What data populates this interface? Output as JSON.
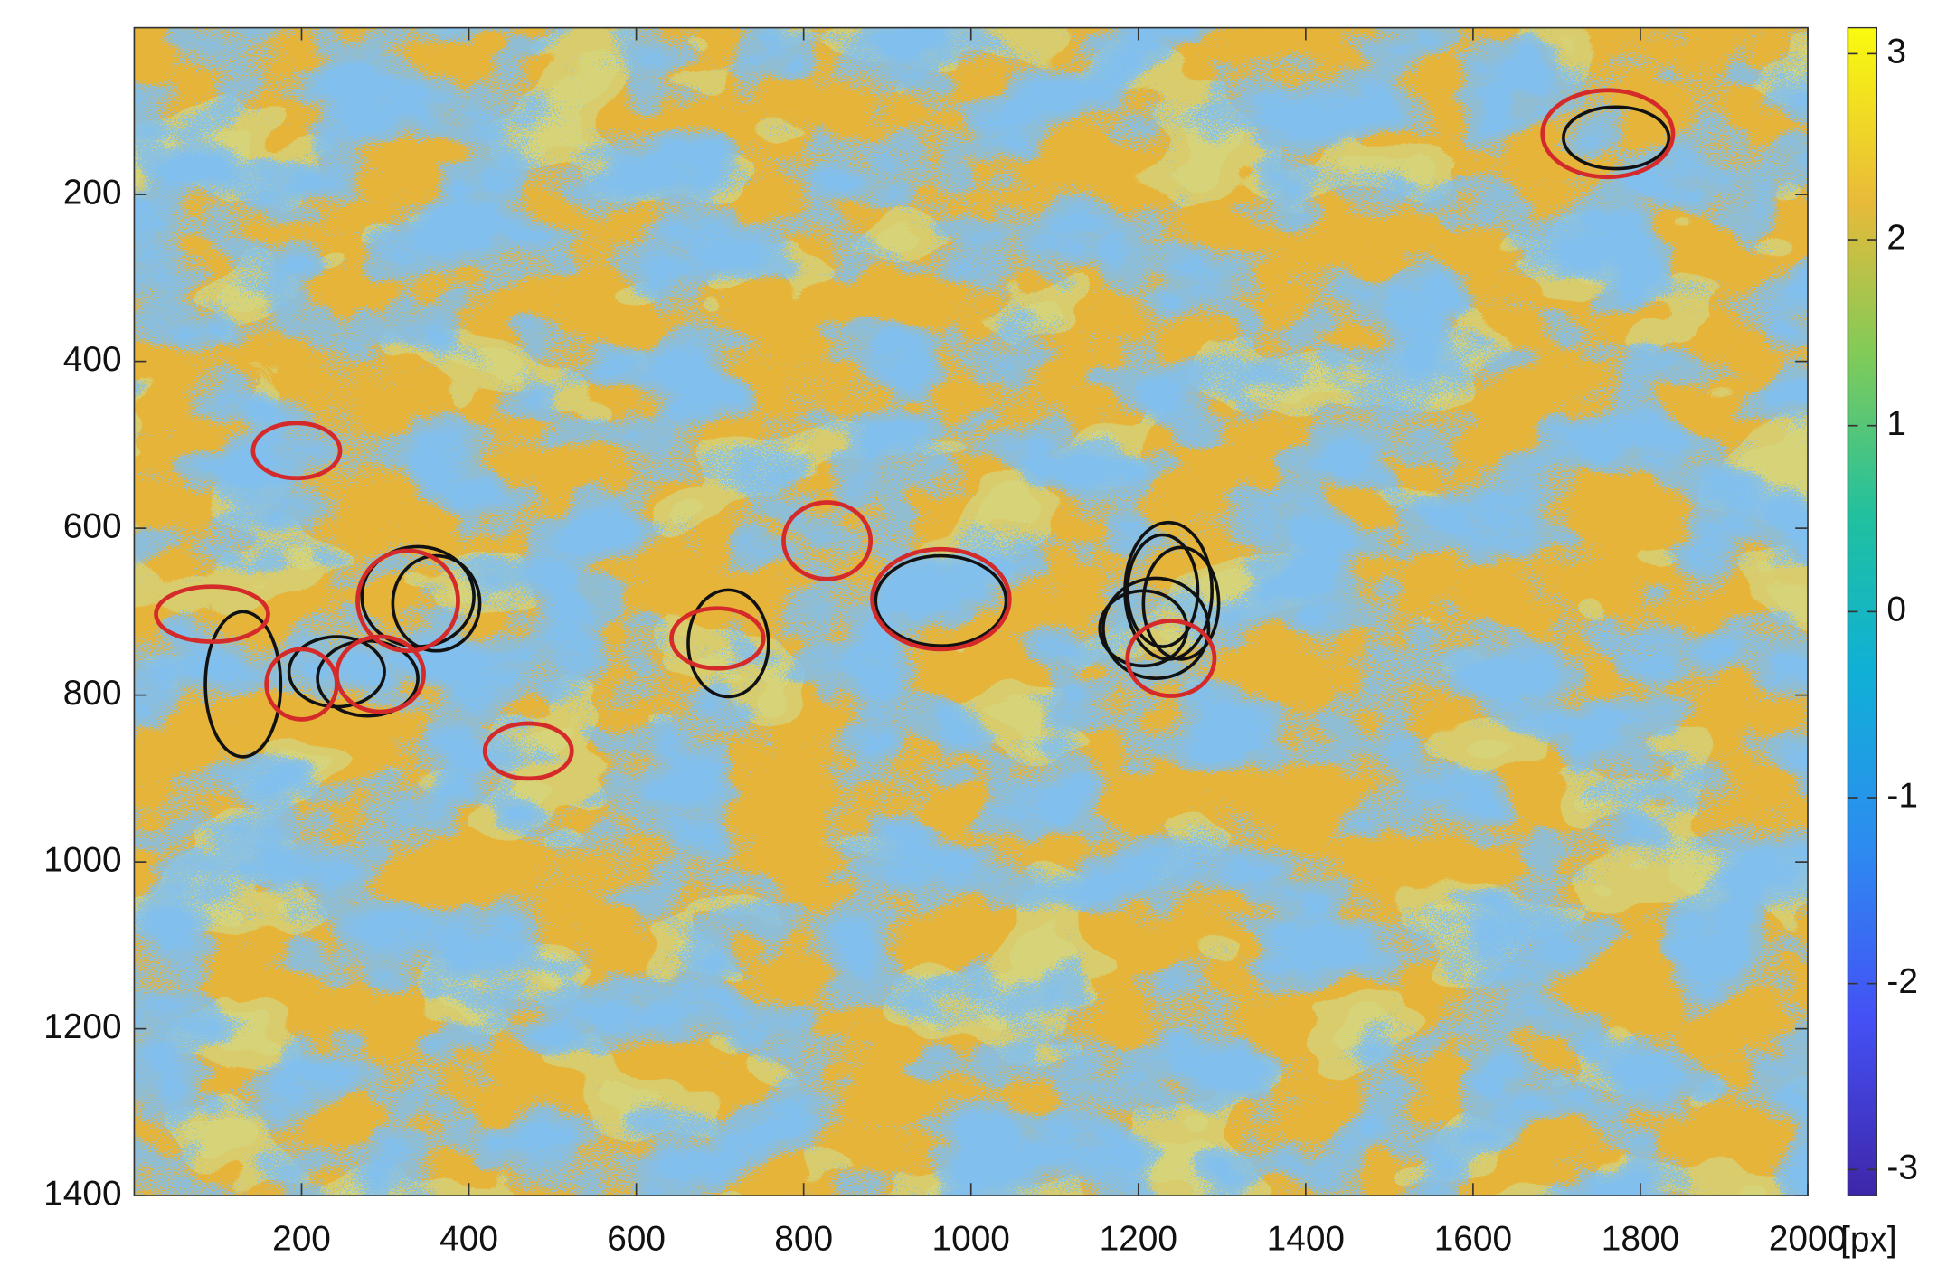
{
  "chart_data": {
    "type": "heatmap",
    "x_unit": "[px]",
    "xlim": [
      0,
      2000
    ],
    "ylim": [
      1400,
      0
    ],
    "xticks": [
      200,
      400,
      600,
      800,
      1000,
      1200,
      1400,
      1600,
      1800,
      2000
    ],
    "yticks": [
      200,
      400,
      600,
      800,
      1000,
      1200,
      1400
    ],
    "clim": [
      -3.14,
      3.14
    ],
    "cticks": [
      -3,
      -2,
      -1,
      0,
      1,
      2,
      3
    ],
    "ellipse_groups": [
      {
        "color": "#111111",
        "ellipses": [
          {
            "cx": 1771,
            "cy": 132,
            "rx": 63,
            "ry": 37
          },
          {
            "cx": 130,
            "cy": 787,
            "rx": 45,
            "ry": 87
          },
          {
            "cx": 710,
            "cy": 738,
            "rx": 48,
            "ry": 64
          },
          {
            "cx": 964,
            "cy": 687,
            "rx": 78,
            "ry": 54
          },
          {
            "cx": 339,
            "cy": 682,
            "rx": 67,
            "ry": 60
          },
          {
            "cx": 361,
            "cy": 690,
            "rx": 52,
            "ry": 57
          },
          {
            "cx": 279,
            "cy": 780,
            "rx": 60,
            "ry": 45
          },
          {
            "cx": 242,
            "cy": 772,
            "rx": 57,
            "ry": 42
          },
          {
            "cx": 1236,
            "cy": 675,
            "rx": 52,
            "ry": 82
          },
          {
            "cx": 1221,
            "cy": 720,
            "rx": 63,
            "ry": 60
          },
          {
            "cx": 1251,
            "cy": 690,
            "rx": 45,
            "ry": 67
          },
          {
            "cx": 1206,
            "cy": 720,
            "rx": 52,
            "ry": 45
          },
          {
            "cx": 1229,
            "cy": 675,
            "rx": 42,
            "ry": 67
          }
        ]
      },
      {
        "color": "#d42a2a",
        "ellipses": [
          {
            "cx": 194,
            "cy": 507,
            "rx": 52,
            "ry": 33
          },
          {
            "cx": 93,
            "cy": 703,
            "rx": 67,
            "ry": 33
          },
          {
            "cx": 200,
            "cy": 787,
            "rx": 42,
            "ry": 42
          },
          {
            "cx": 327,
            "cy": 687,
            "rx": 60,
            "ry": 60
          },
          {
            "cx": 294,
            "cy": 775,
            "rx": 52,
            "ry": 45
          },
          {
            "cx": 471,
            "cy": 867,
            "rx": 52,
            "ry": 33
          },
          {
            "cx": 697,
            "cy": 732,
            "rx": 55,
            "ry": 36
          },
          {
            "cx": 828,
            "cy": 615,
            "rx": 52,
            "ry": 46
          },
          {
            "cx": 964,
            "cy": 685,
            "rx": 82,
            "ry": 60
          },
          {
            "cx": 1239,
            "cy": 756,
            "rx": 52,
            "ry": 45
          },
          {
            "cx": 1761,
            "cy": 127,
            "rx": 78,
            "ry": 52
          }
        ]
      }
    ]
  }
}
